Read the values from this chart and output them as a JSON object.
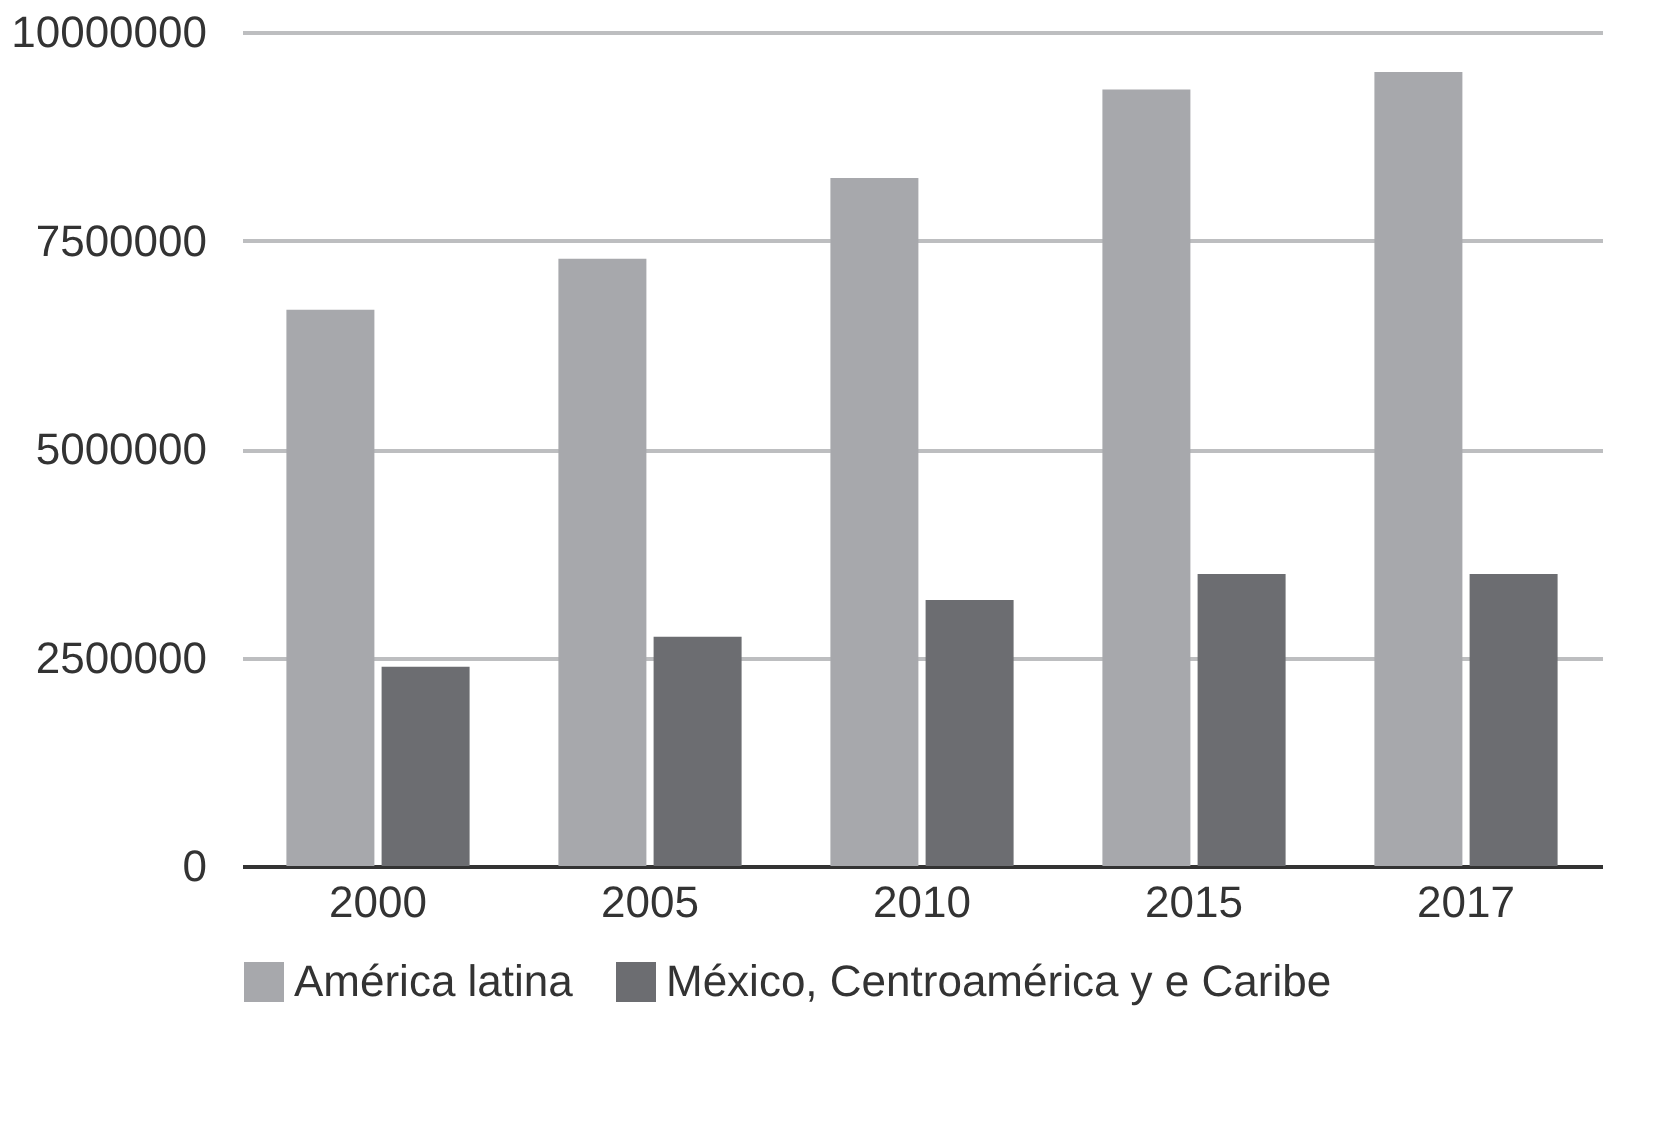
{
  "chart_data": {
    "type": "bar",
    "categories": [
      "2000",
      "2005",
      "2010",
      "2015",
      "2017"
    ],
    "series": [
      {
        "name": "América latina",
        "color": "#a7a8ac",
        "values": [
          6670000,
          7280000,
          8250000,
          9310000,
          9520000
        ]
      },
      {
        "name": "México, Centroamérica y e Caribe",
        "color": "#6c6d71",
        "values": [
          2390000,
          2750000,
          3190000,
          3500000,
          3500000
        ]
      }
    ],
    "ylim": [
      0,
      10000000
    ],
    "yticks": [
      0,
      2500000,
      5000000,
      7500000,
      10000000
    ],
    "grid": "y",
    "legend": "bottom"
  }
}
